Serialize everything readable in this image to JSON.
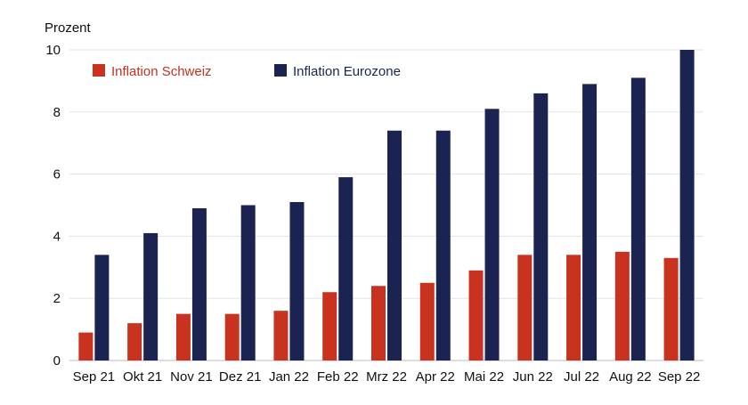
{
  "chart_data": {
    "type": "bar",
    "unit_label": "Prozent",
    "categories": [
      "Sep 21",
      "Okt 21",
      "Nov 21",
      "Dez 21",
      "Jan 22",
      "Feb 22",
      "Mrz 22",
      "Apr 22",
      "Mai 22",
      "Jun 22",
      "Jul 22",
      "Aug 22",
      "Sep 22"
    ],
    "series": [
      {
        "name": "Inflation Schweiz",
        "color": "#c8321e",
        "values": [
          0.9,
          1.2,
          1.5,
          1.5,
          1.6,
          2.2,
          2.4,
          2.5,
          2.9,
          3.4,
          3.4,
          3.5,
          3.3
        ]
      },
      {
        "name": "Inflation Eurozone",
        "color": "#1b2350",
        "values": [
          3.4,
          4.1,
          4.9,
          5.0,
          5.1,
          5.9,
          7.4,
          7.4,
          8.1,
          8.6,
          8.9,
          9.1,
          10.0
        ]
      }
    ],
    "ylim": [
      0,
      10
    ],
    "yticks": [
      0,
      2,
      4,
      6,
      8,
      10
    ],
    "grid": true,
    "legend_position": "top-left"
  }
}
